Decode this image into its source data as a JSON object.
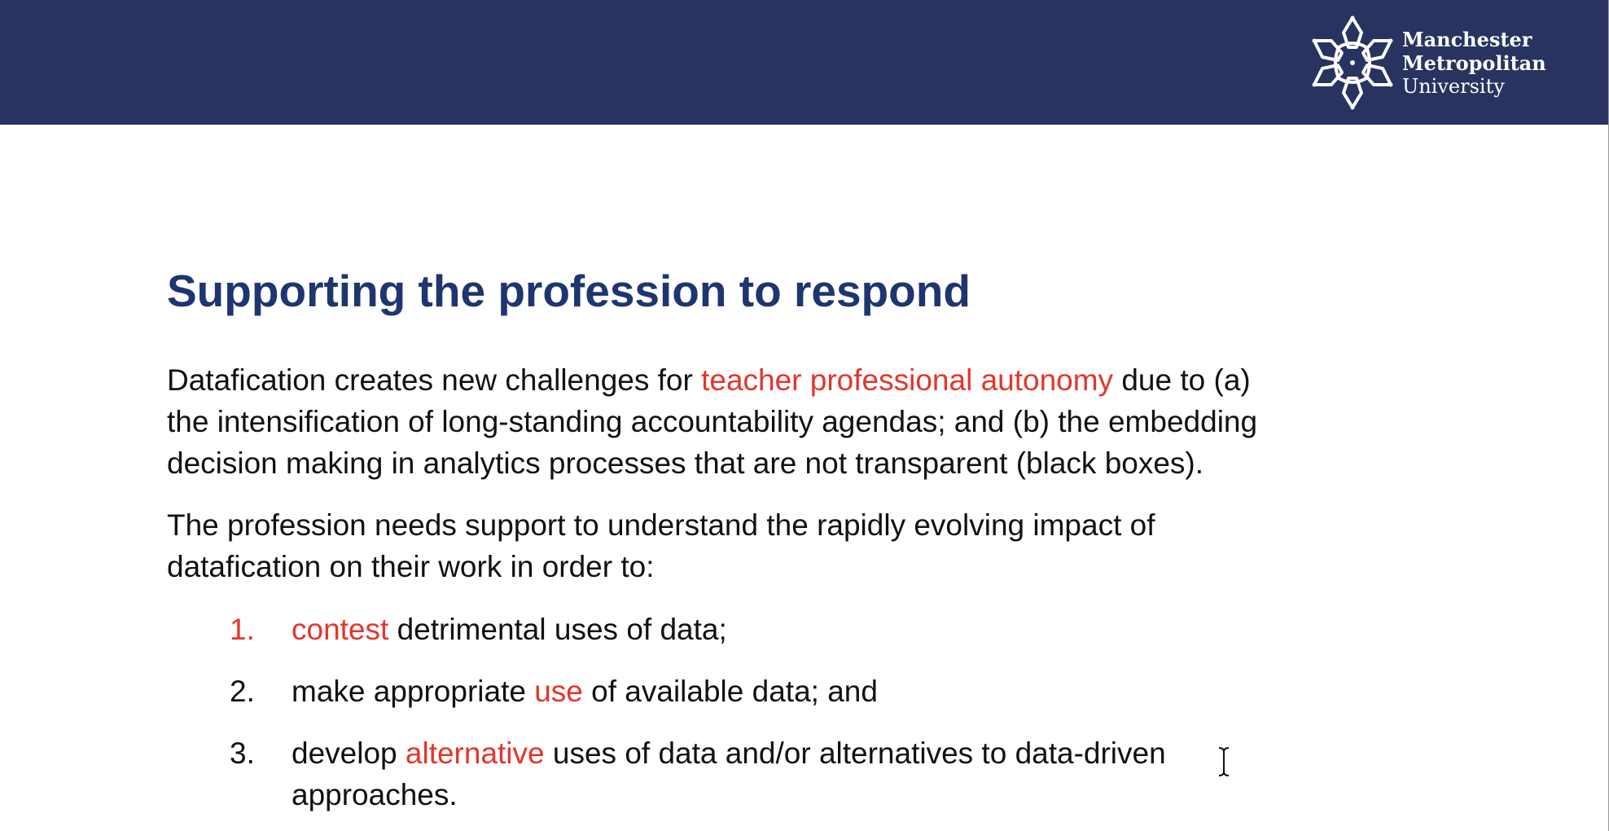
{
  "header": {
    "logo": {
      "line1": "Manchester",
      "line2": "Metropolitan",
      "line3": "University",
      "icon": "mmu-flower-logo-icon"
    }
  },
  "slide": {
    "title": "Supporting the profession to respond",
    "paragraph1": {
      "line1_before": "Datafication creates new challenges for ",
      "line1_accent": "teacher professional autonomy",
      "line1_after": " due to (a)",
      "line2": "the intensification of long-standing accountability agendas; and (b) the embedding",
      "line3": "decision making in analytics processes that are not transparent (black boxes)."
    },
    "paragraph2": {
      "line1": "The profession needs support to understand the rapidly evolving impact of",
      "line2": "datafication on their work in order to:"
    },
    "list": [
      {
        "number": "1.",
        "accent": "contest",
        "after": " detrimental uses of data;"
      },
      {
        "number": "2.",
        "before": "make appropriate ",
        "accent": "use",
        "after": " of available data; and"
      },
      {
        "number": "3.",
        "before": "develop ",
        "accent": "alternative",
        "after": " uses of data and/or alternatives to data-driven",
        "line2": "approaches."
      }
    ]
  },
  "colors": {
    "header_bg": "#283360",
    "title": "#1f3570",
    "accent": "#e5352b",
    "body_text": "#111111"
  },
  "cursor": {
    "icon": "text-cursor-icon"
  }
}
